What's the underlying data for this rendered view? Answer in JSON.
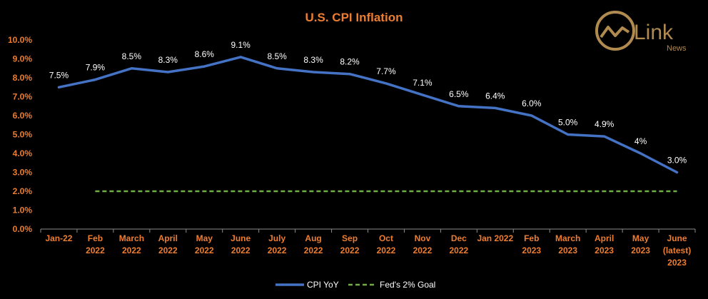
{
  "chart_data": {
    "type": "line",
    "title": "U.S. CPI Inflation",
    "categories": [
      [
        "Jan-22"
      ],
      [
        "Feb",
        "2022"
      ],
      [
        "March",
        "2022"
      ],
      [
        "April",
        "2022"
      ],
      [
        "May",
        "2022"
      ],
      [
        "June",
        "2022"
      ],
      [
        "July",
        "2022"
      ],
      [
        "Aug",
        "2022"
      ],
      [
        "Sep",
        "2022"
      ],
      [
        "Oct",
        "2022"
      ],
      [
        "Nov",
        "2022"
      ],
      [
        "Dec",
        "2022"
      ],
      [
        "Jan 2022"
      ],
      [
        "Feb",
        "2023"
      ],
      [
        "March",
        "2023"
      ],
      [
        "April",
        "2023"
      ],
      [
        "May",
        "2023"
      ],
      [
        "June",
        "(latest)",
        "2023"
      ]
    ],
    "series": [
      {
        "name": "CPI YoY",
        "values": [
          7.5,
          7.9,
          8.5,
          8.3,
          8.6,
          9.1,
          8.5,
          8.3,
          8.2,
          7.7,
          7.1,
          6.5,
          6.4,
          6.0,
          5.0,
          4.9,
          4.0,
          3.0
        ],
        "labels": [
          "7.5%",
          "7.9%",
          "8.5%",
          "8.3%",
          "8.6%",
          "9.1%",
          "8.5%",
          "8.3%",
          "8.2%",
          "7.7%",
          "7.1%",
          "6.5%",
          "6.4%",
          "6.0%",
          "5.0%",
          "4.9%",
          "4%",
          "3.0%"
        ],
        "color": "#4472C4",
        "style": "solid"
      },
      {
        "name": "Fed's 2% Goal",
        "values": [
          null,
          2,
          2,
          2,
          2,
          2,
          2,
          2,
          2,
          2,
          2,
          2,
          2,
          2,
          2,
          2,
          2,
          2
        ],
        "color": "#70AD47",
        "style": "dashed"
      }
    ],
    "ylim": [
      0,
      10
    ],
    "yticks": [
      "0.0%",
      "1.0%",
      "2.0%",
      "3.0%",
      "4.0%",
      "5.0%",
      "6.0%",
      "7.0%",
      "8.0%",
      "9.0%",
      "10.0%"
    ],
    "grid": false,
    "legend": "bottom-center"
  },
  "colors": {
    "background": "#000000",
    "title": "#ED7D31",
    "axis_text": "#ED7D31",
    "data_label": "#FFFFFF",
    "legend_text": "#FFFFFF",
    "axis_line": "#8C8C8C",
    "logo": "#B08A4E"
  },
  "logo": {
    "word": "Link",
    "sub": "News",
    "icon": "chart-circle-logo-icon"
  }
}
